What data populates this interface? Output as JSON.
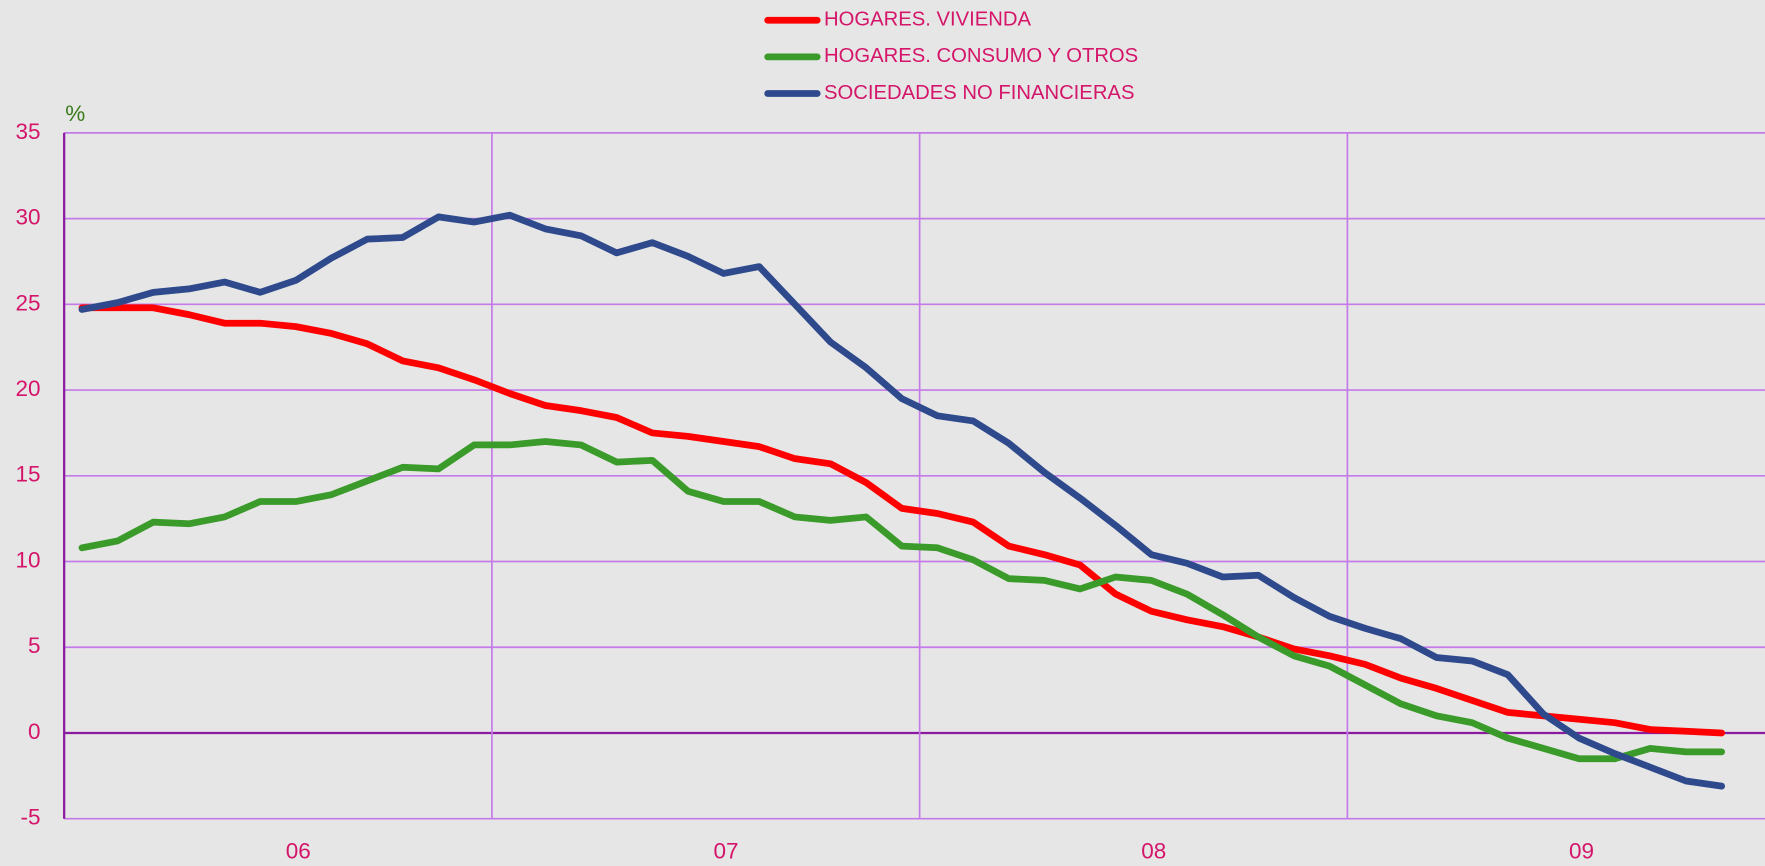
{
  "chart_data": {
    "type": "line",
    "y_label": "%",
    "year_labels": [
      "06",
      "07",
      "08",
      "09"
    ],
    "months_per_year": 12,
    "ylim": [
      -5,
      35
    ],
    "yticks": [
      -5,
      0,
      5,
      10,
      15,
      20,
      25,
      30,
      35
    ],
    "grid": true,
    "series": [
      {
        "name": "HOGARES. VIVIENDA",
        "color": "#ff0000",
        "values": [
          24.8,
          24.8,
          24.8,
          24.4,
          23.9,
          23.9,
          23.7,
          23.3,
          22.7,
          21.7,
          21.3,
          20.6,
          19.8,
          19.1,
          18.8,
          18.4,
          17.5,
          17.3,
          17.0,
          16.7,
          16.0,
          15.7,
          14.6,
          13.1,
          12.8,
          12.3,
          10.9,
          10.4,
          9.8,
          8.1,
          7.1,
          6.6,
          6.2,
          5.6,
          4.9,
          4.5,
          4.0,
          3.2,
          2.6,
          1.9,
          1.2,
          1.0,
          0.8,
          0.6,
          0.2,
          0.1,
          0.0
        ]
      },
      {
        "name": "HOGARES. CONSUMO Y OTROS",
        "color": "#3a9a2a",
        "values": [
          10.8,
          11.2,
          12.3,
          12.2,
          12.6,
          13.5,
          13.5,
          13.9,
          14.7,
          15.5,
          15.4,
          16.8,
          16.8,
          17.0,
          16.8,
          15.8,
          15.9,
          14.1,
          13.5,
          13.5,
          12.6,
          12.4,
          12.6,
          10.9,
          10.8,
          10.1,
          9.0,
          8.9,
          8.4,
          9.1,
          8.9,
          8.1,
          6.9,
          5.6,
          4.5,
          3.9,
          2.8,
          1.7,
          1.0,
          0.6,
          -0.3,
          -0.9,
          -1.5,
          -1.5,
          -0.9,
          -1.1,
          -1.1
        ]
      },
      {
        "name": "SOCIEDADES NO FINANCIERAS",
        "color": "#2e4a8c",
        "values": [
          24.7,
          25.1,
          25.7,
          25.9,
          26.3,
          25.7,
          26.4,
          27.7,
          28.8,
          28.9,
          30.1,
          29.8,
          30.2,
          29.4,
          29.0,
          28.0,
          28.6,
          27.8,
          26.8,
          27.2,
          25.0,
          22.8,
          21.3,
          19.5,
          18.5,
          18.2,
          16.9,
          15.2,
          13.7,
          12.1,
          10.4,
          9.9,
          9.1,
          9.2,
          7.9,
          6.8,
          6.1,
          5.5,
          4.4,
          4.2,
          3.4,
          1.1,
          -0.3,
          -1.2,
          -2.0,
          -2.8,
          -3.1
        ]
      }
    ]
  }
}
